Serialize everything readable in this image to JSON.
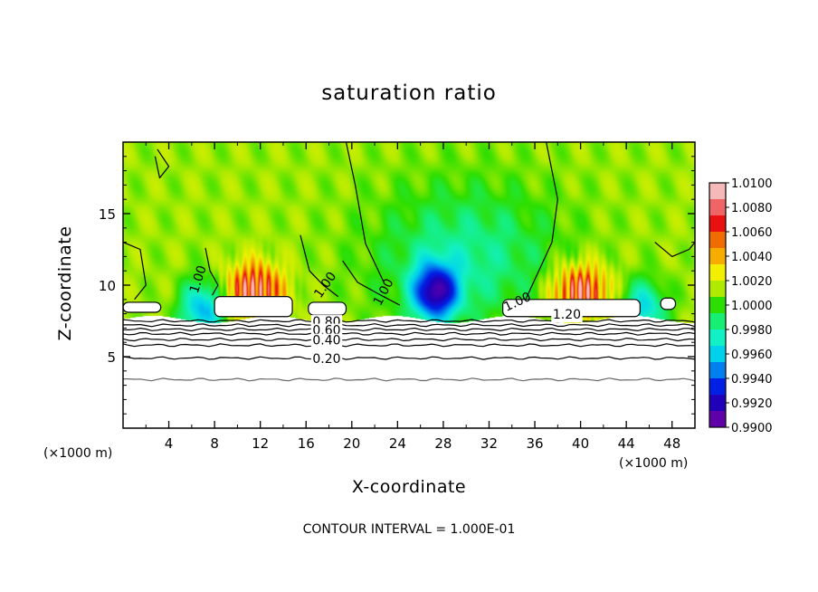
{
  "chart_data": {
    "type": "heatmap",
    "title": "saturation ratio",
    "xlabel": "X-coordinate",
    "ylabel": "Z-coordinate",
    "x_unit_label_left": "(×1000 m)",
    "x_unit_label_right": "(×1000 m)",
    "footer": "CONTOUR INTERVAL = 1.000E-01",
    "xlim": [
      0,
      50
    ],
    "ylim": [
      0,
      20
    ],
    "x_ticks": [
      "4",
      "8",
      "12",
      "16",
      "20",
      "24",
      "28",
      "32",
      "36",
      "40",
      "44",
      "48"
    ],
    "y_ticks": [
      "5",
      "10",
      "15"
    ],
    "colorbar": {
      "min": 0.99,
      "max": 1.01,
      "labels": [
        "1.0100",
        "1.0080",
        "1.0060",
        "1.0040",
        "1.0020",
        "1.0000",
        "0.9980",
        "0.9960",
        "0.9940",
        "0.9920",
        "0.9900"
      ],
      "colors": [
        "#f6b9b9",
        "#ef6565",
        "#e81010",
        "#f06b00",
        "#f6ad00",
        "#f2f000",
        "#aeeb00",
        "#2ddf00",
        "#16ee74",
        "#12f0c6",
        "#00d2ee",
        "#0080ee",
        "#0020e6",
        "#2000b8",
        "#6000a8"
      ]
    },
    "contour_labels": [
      {
        "text": "1.00",
        "x": 6.6,
        "z": 10.4,
        "angle": -72
      },
      {
        "text": "1.00",
        "x": 17.7,
        "z": 10.0,
        "angle": -55
      },
      {
        "text": "1.00",
        "x": 22.8,
        "z": 9.5,
        "angle": -62
      },
      {
        "text": "1.00",
        "x": 34.5,
        "z": 8.8,
        "angle": -25
      },
      {
        "text": "1.20",
        "x": 38.8,
        "z": 7.9,
        "angle": 0
      },
      {
        "text": "0.80",
        "x": 17.8,
        "z": 7.4,
        "angle": 0
      },
      {
        "text": "0.60",
        "x": 17.8,
        "z": 6.8,
        "angle": 0
      },
      {
        "text": "0.40",
        "x": 17.8,
        "z": 6.1,
        "angle": 0
      },
      {
        "text": "0.20",
        "x": 17.8,
        "z": 4.8,
        "angle": 0
      }
    ],
    "contour_levels": [
      0.2,
      0.4,
      0.6,
      0.8,
      1.0,
      1.2
    ],
    "horizontal_contours_z": [
      3.4,
      4.9,
      5.8,
      6.2,
      6.6,
      6.9,
      7.2,
      7.5
    ],
    "cloud_regions": [
      {
        "x0": 8.0,
        "x1": 14.8,
        "z0": 7.8,
        "z1": 9.2
      },
      {
        "x0": 33.2,
        "x1": 45.2,
        "z0": 7.8,
        "z1": 9.0
      },
      {
        "x0": 0.0,
        "x1": 3.3,
        "z0": 8.1,
        "z1": 8.8
      },
      {
        "x0": 16.2,
        "x1": 19.5,
        "z0": 7.9,
        "z1": 8.8
      },
      {
        "x0": 47.0,
        "x1": 48.3,
        "z0": 8.3,
        "z1": 9.1
      }
    ],
    "features": [
      {
        "kind": "supersaturated",
        "x": 11.5,
        "z": 9.6,
        "value": 1.007
      },
      {
        "kind": "supersaturated",
        "x": 40.0,
        "z": 9.5,
        "value": 1.007
      },
      {
        "kind": "subsaturated",
        "x": 27.3,
        "z": 9.5,
        "value": 0.991
      },
      {
        "kind": "subsaturated",
        "x": 7.0,
        "z": 8.3,
        "value": 0.994
      },
      {
        "kind": "subsaturated",
        "x": 45.5,
        "z": 8.3,
        "value": 0.995
      },
      {
        "kind": "moist_core",
        "x": 30.0,
        "z": 12.0,
        "value": 0.9968
      }
    ]
  }
}
